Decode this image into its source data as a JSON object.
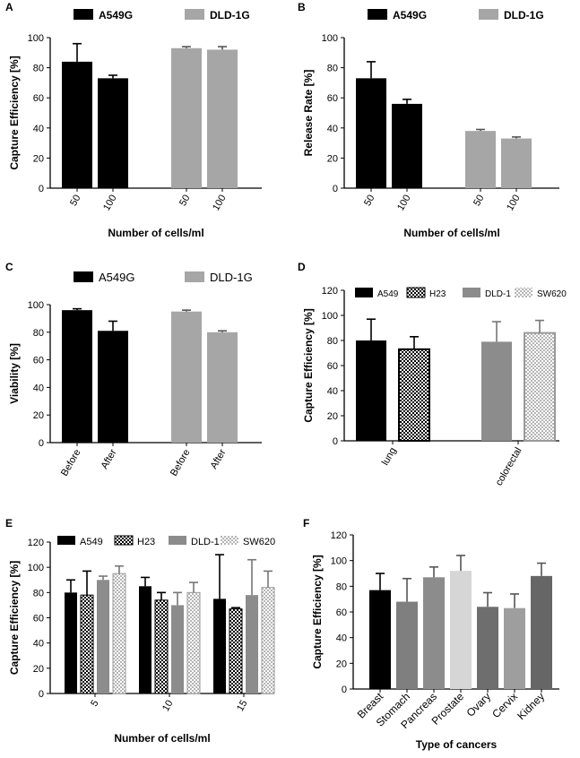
{
  "colors": {
    "black": "#000000",
    "gray": "#a6a6a6",
    "midgray": "#8c8c8c",
    "white": "#ffffff",
    "checker": "#2a2a2a",
    "lightcheck": "#c8c8c8",
    "breast": "#000000",
    "stomach": "#7f7f7f",
    "pancreas": "#8c8c8c",
    "prostate": "#d6d6d6",
    "ovary": "#6e6e6e",
    "cervix": "#9e9e9e",
    "kidney": "#666666"
  },
  "chart_data": [
    {
      "panel": "A",
      "type": "bar",
      "legend": [
        "A549G",
        "DLD-1G"
      ],
      "xlabel": "Number of cells/ml",
      "ylabel": "Capture Efficiency [%]",
      "ylim": [
        0,
        100
      ],
      "yticks": [
        0,
        20,
        40,
        60,
        80,
        100
      ],
      "categories": [
        "50",
        "100",
        "50",
        "100"
      ],
      "values": [
        84,
        73,
        93,
        92
      ],
      "errors": [
        12,
        2,
        1,
        2
      ],
      "series_index": [
        0,
        0,
        1,
        1
      ]
    },
    {
      "panel": "B",
      "type": "bar",
      "legend": [
        "A549G",
        "DLD-1G"
      ],
      "xlabel": "Number of cells/ml",
      "ylabel": "Release Rate [%]",
      "ylim": [
        0,
        100
      ],
      "yticks": [
        0,
        20,
        40,
        60,
        80,
        100
      ],
      "categories": [
        "50",
        "100",
        "50",
        "100"
      ],
      "values": [
        73,
        56,
        38,
        33
      ],
      "errors": [
        11,
        3,
        1,
        1
      ],
      "series_index": [
        0,
        0,
        1,
        1
      ]
    },
    {
      "panel": "C",
      "type": "bar",
      "legend": [
        "A549G",
        "DLD-1G"
      ],
      "xlabel": "",
      "ylabel": "Viability [%]",
      "ylim": [
        0,
        100
      ],
      "yticks": [
        0,
        20,
        40,
        60,
        80,
        100
      ],
      "categories": [
        "Before",
        "After",
        "Before",
        "After"
      ],
      "values": [
        96,
        81,
        95,
        80
      ],
      "errors": [
        1,
        7,
        1,
        1
      ],
      "series_index": [
        0,
        0,
        1,
        1
      ]
    },
    {
      "panel": "D",
      "type": "bar",
      "legend": [
        "A549",
        "H23",
        "DLD-1",
        "SW620"
      ],
      "xlabel": "",
      "ylabel": "Capture Efficiency [%]",
      "ylim": [
        0,
        120
      ],
      "yticks": [
        0,
        20,
        40,
        60,
        80,
        100,
        120
      ],
      "groups": [
        "lung",
        "colorectal"
      ],
      "series": [
        {
          "name": "A549",
          "values": [
            80,
            null
          ],
          "errors": [
            17,
            null
          ]
        },
        {
          "name": "H23",
          "values": [
            73,
            null
          ],
          "errors": [
            10,
            null
          ]
        },
        {
          "name": "DLD-1",
          "values": [
            null,
            79
          ],
          "errors": [
            null,
            16
          ]
        },
        {
          "name": "SW620",
          "values": [
            null,
            86
          ],
          "errors": [
            null,
            10
          ]
        }
      ]
    },
    {
      "panel": "E",
      "type": "bar",
      "legend": [
        "A549",
        "H23",
        "DLD-1",
        "SW620"
      ],
      "xlabel": "Number of cells/ml",
      "ylabel": "Capture Efficiency [%]",
      "ylim": [
        0,
        120
      ],
      "yticks": [
        0,
        20,
        40,
        60,
        80,
        100,
        120
      ],
      "categories": [
        "5",
        "10",
        "15"
      ],
      "series": [
        {
          "name": "A549",
          "values": [
            80,
            85,
            75
          ],
          "errors": [
            10,
            7,
            35
          ]
        },
        {
          "name": "H23",
          "values": [
            78,
            74,
            67
          ],
          "errors": [
            19,
            6,
            1
          ]
        },
        {
          "name": "DLD-1",
          "values": [
            90,
            70,
            78
          ],
          "errors": [
            3,
            10,
            28
          ]
        },
        {
          "name": "SW620",
          "values": [
            95,
            80,
            84
          ],
          "errors": [
            6,
            8,
            13
          ]
        }
      ]
    },
    {
      "panel": "F",
      "type": "bar",
      "xlabel": "Type of cancers",
      "ylabel": "Capture Efficiency [%]",
      "ylim": [
        0,
        120
      ],
      "yticks": [
        0,
        20,
        40,
        60,
        80,
        100,
        120
      ],
      "categories": [
        "Breast",
        "Stomach",
        "Pancreas",
        "Prostate",
        "Ovary",
        "Cervix",
        "Kidney"
      ],
      "values": [
        77,
        68,
        87,
        92,
        64,
        63,
        88
      ],
      "errors": [
        13,
        18,
        8,
        12,
        11,
        11,
        10
      ]
    }
  ]
}
